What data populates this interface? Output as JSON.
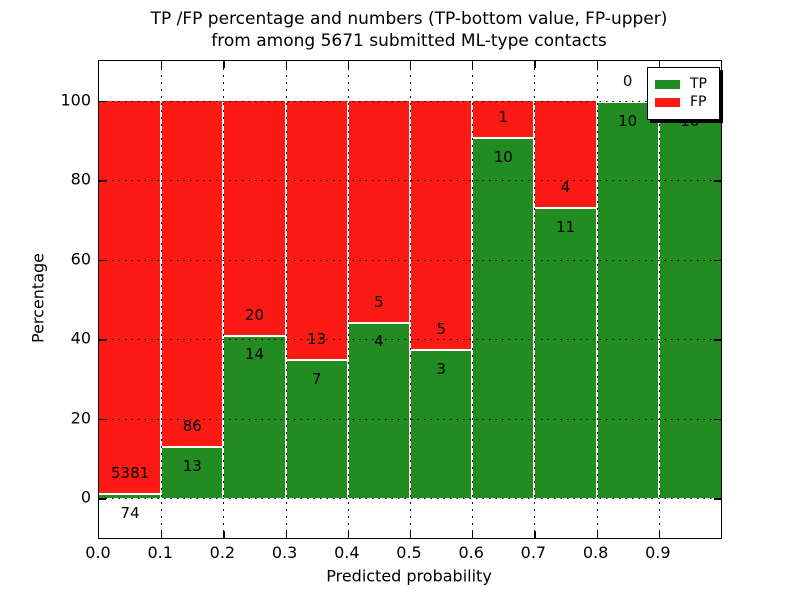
{
  "figure": {
    "title_line1": "TP /FP percentage and numbers (TP-bottom value, FP-upper)",
    "title_line2": "from among 5671 submitted ML-type contacts"
  },
  "axes": {
    "xlabel": "Predicted probability",
    "ylabel": "Percentage"
  },
  "legend": {
    "position": "upper right",
    "tp_label": "TP",
    "fp_label": "FP"
  },
  "colors": {
    "tp_green": "#228B22",
    "fp_red": "#FB1B14",
    "background": "#FFFFFF",
    "grid": "#000000",
    "bar_edge": "#FFFFFF"
  },
  "chart_data": {
    "type": "bar",
    "stacked": true,
    "normalized_to": 100,
    "title": "TP /FP percentage and numbers (TP-bottom value, FP-upper) from among 5671 submitted ML-type contacts",
    "total_submitted": 5671,
    "xlabel": "Predicted probability",
    "ylabel": "Percentage",
    "xlim": [
      0.0,
      1.0
    ],
    "ylim": [
      -10,
      110
    ],
    "bin_width": 0.1,
    "x_tick_labels": [
      "0.0",
      "0.1",
      "0.2",
      "0.3",
      "0.4",
      "0.5",
      "0.6",
      "0.7",
      "0.8",
      "0.9"
    ],
    "y_tick_values": [
      0,
      20,
      40,
      60,
      80,
      100
    ],
    "grid": "dotted, both axes",
    "legend_position": "upper right",
    "categories": [
      "0.0-0.1",
      "0.1-0.2",
      "0.2-0.3",
      "0.3-0.4",
      "0.4-0.5",
      "0.5-0.6",
      "0.6-0.7",
      "0.7-0.8",
      "0.8-0.9",
      "0.9-1.0"
    ],
    "series": [
      {
        "name": "TP",
        "color": "#228B22",
        "counts": [
          74,
          13,
          14,
          7,
          4,
          3,
          10,
          11,
          10,
          10
        ],
        "pct": [
          1.36,
          13.13,
          41.18,
          35.0,
          44.44,
          37.5,
          90.91,
          73.33,
          100.0,
          100.0
        ]
      },
      {
        "name": "FP",
        "color": "#FB1B14",
        "counts": [
          5381,
          86,
          20,
          13,
          5,
          5,
          1,
          4,
          0,
          0
        ],
        "pct": [
          98.64,
          86.87,
          58.82,
          65.0,
          55.56,
          62.5,
          9.09,
          26.67,
          0.0,
          0.0
        ]
      }
    ]
  }
}
